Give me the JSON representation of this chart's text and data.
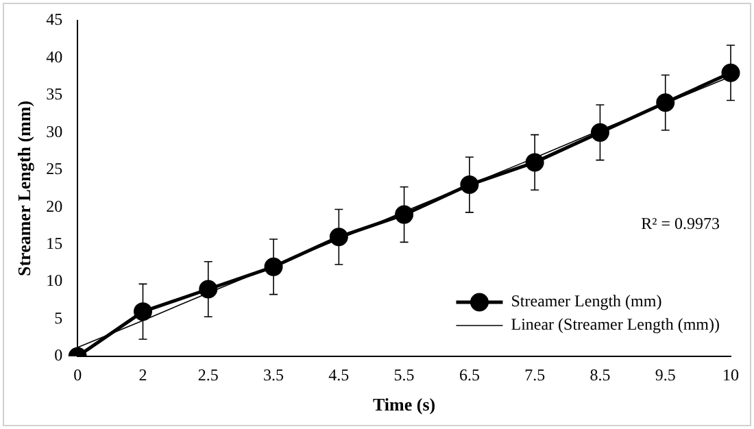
{
  "chart_data": {
    "type": "line",
    "xlabel": "Time (s)",
    "ylabel": "Streamer Length (mm)",
    "categories": [
      "0",
      "2",
      "2.5",
      "3.5",
      "4.5",
      "5.5",
      "6.5",
      "7.5",
      "8.5",
      "9.5",
      "10"
    ],
    "series": [
      {
        "name": "Streamer Length (mm)",
        "color": "#000000",
        "marker": "circle",
        "values": [
          0,
          6,
          9,
          12,
          16,
          19,
          23,
          26,
          30,
          34,
          38
        ],
        "errors": [
          null,
          3.7,
          3.7,
          3.7,
          3.7,
          3.7,
          3.7,
          3.7,
          3.7,
          3.7,
          3.7
        ]
      },
      {
        "name": "Linear (Streamer Length (mm))",
        "color": "#000000",
        "marker": "none",
        "values": [
          1.2,
          4.8,
          8.5,
          12.1,
          15.7,
          19.4,
          23.0,
          26.6,
          30.3,
          33.9,
          37.5
        ]
      }
    ],
    "ylim": [
      0,
      45
    ],
    "yticks": [
      0,
      5,
      10,
      15,
      20,
      25,
      30,
      35,
      40,
      45
    ],
    "grid": false,
    "legend": "bottom right",
    "annotations": [
      "R² = 0.9973"
    ]
  }
}
